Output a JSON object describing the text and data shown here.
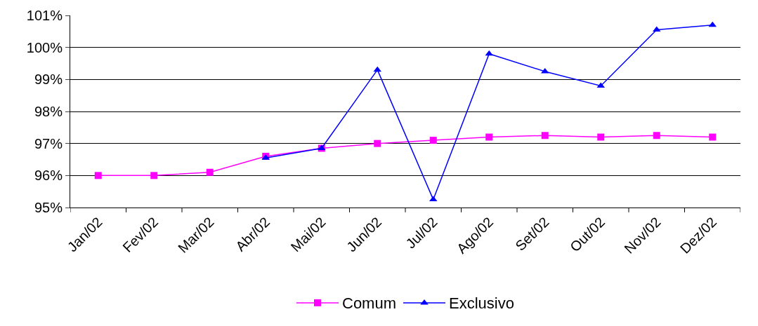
{
  "chart_data": {
    "type": "line",
    "categories": [
      "Jan/02",
      "Fev/02",
      "Mar/02",
      "Abr/02",
      "Mai/02",
      "Jun/02",
      "Jul/02",
      "Ago/02",
      "Set/02",
      "Out/02",
      "Nov/02",
      "Dez/02"
    ],
    "series": [
      {
        "name": "Comum",
        "color": "#ff00ff",
        "marker": "square",
        "values": [
          96.0,
          96.0,
          96.1,
          96.6,
          96.85,
          97.0,
          97.1,
          97.2,
          97.25,
          97.2,
          97.25,
          97.2
        ]
      },
      {
        "name": "Exclusivo",
        "color": "#0000ff",
        "marker": "triangle",
        "values": [
          null,
          null,
          null,
          96.55,
          96.85,
          99.3,
          95.25,
          99.8,
          99.25,
          98.8,
          100.55,
          100.7
        ]
      }
    ],
    "ylim": [
      95,
      101
    ],
    "yticks": [
      {
        "value": 95,
        "label": "95%"
      },
      {
        "value": 96,
        "label": "96%"
      },
      {
        "value": 97,
        "label": "97%"
      },
      {
        "value": 98,
        "label": "98%"
      },
      {
        "value": 99,
        "label": "99%"
      },
      {
        "value": 100,
        "label": "100%"
      },
      {
        "value": 101,
        "label": "101%"
      }
    ],
    "grid": "y",
    "legend": "bottom",
    "line_style": "solid"
  }
}
